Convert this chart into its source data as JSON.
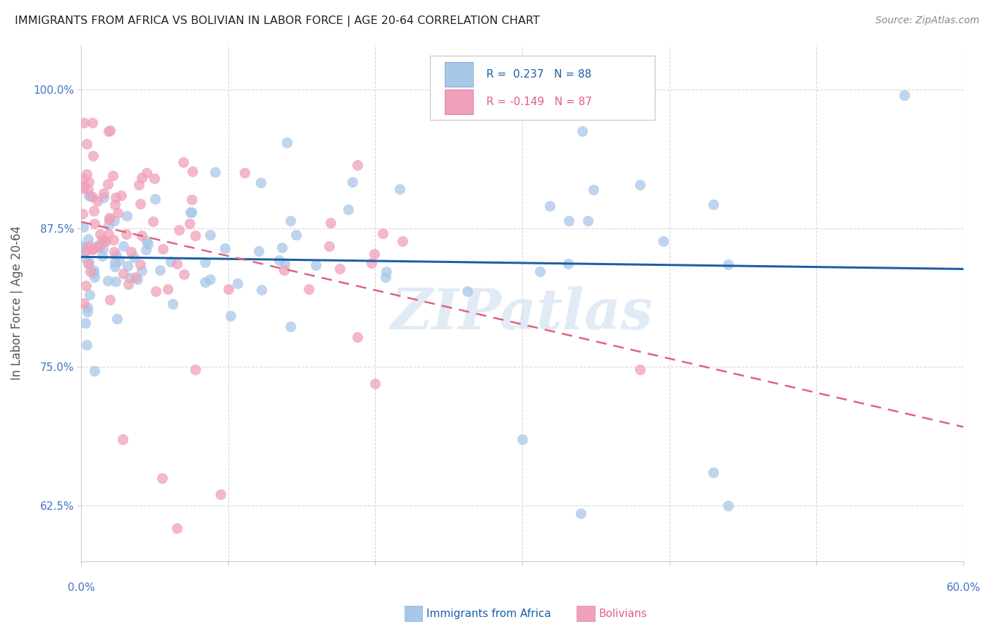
{
  "title": "IMMIGRANTS FROM AFRICA VS BOLIVIAN IN LABOR FORCE | AGE 20-64 CORRELATION CHART",
  "source": "Source: ZipAtlas.com",
  "ylabel": "In Labor Force | Age 20-64",
  "ytick_vals": [
    0.625,
    0.75,
    0.875,
    1.0
  ],
  "xlim": [
    0.0,
    0.6
  ],
  "ylim": [
    0.575,
    1.04
  ],
  "color_blue": "#a8c8e8",
  "color_pink": "#f0a0b8",
  "line_blue": "#1a5fa8",
  "line_pink": "#e06080",
  "watermark": "ZIPatlas",
  "grid_color": "#d8d8d8",
  "tick_color": "#4472c4",
  "title_color": "#222222",
  "source_color": "#888888",
  "ylabel_color": "#555555",
  "legend_box_edge": "#cccccc",
  "seed": 42,
  "n_africa": 88,
  "n_bolivia": 87
}
